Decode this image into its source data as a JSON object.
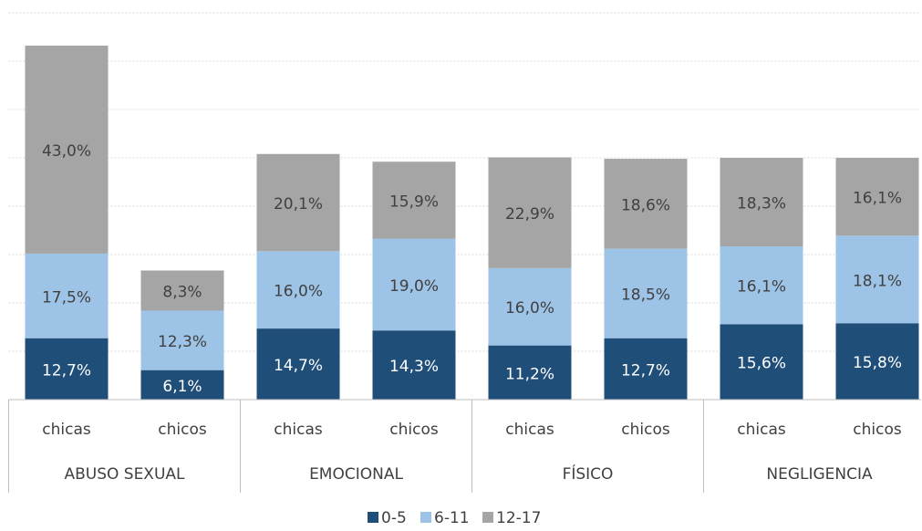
{
  "chart_data": {
    "type": "stacked_bar",
    "groups": [
      "ABUSO SEXUAL",
      "EMOCIONAL",
      "FÍSICO",
      "NEGLIGENCIA"
    ],
    "categories": [
      "chicas",
      "chicos",
      "chicas",
      "chicos",
      "chicas",
      "chicos",
      "chicas",
      "chicos"
    ],
    "series": [
      {
        "name": "0-5",
        "color": "#1f4e79",
        "values": [
          12.7,
          6.1,
          14.7,
          14.3,
          11.2,
          12.7,
          15.6,
          15.8
        ],
        "value_labels": [
          "12,7%",
          "6,1%",
          "14,7%",
          "14,3%",
          "11,2%",
          "12,7%",
          "15,6%",
          "15,8%"
        ]
      },
      {
        "name": "6-11",
        "color": "#9dc3e6",
        "values": [
          17.5,
          12.3,
          16.0,
          19.0,
          16.0,
          18.5,
          16.1,
          18.1
        ],
        "value_labels": [
          "17,5%",
          "12,3%",
          "16,0%",
          "19,0%",
          "16,0%",
          "18,5%",
          "16,1%",
          "18,1%"
        ]
      },
      {
        "name": "12-17",
        "color": "#a5a5a5",
        "values": [
          43.0,
          8.3,
          20.1,
          15.9,
          22.9,
          18.6,
          18.3,
          16.1
        ],
        "value_labels": [
          "43,0%",
          "8,3%",
          "20,1%",
          "15,9%",
          "22,9%",
          "18,6%",
          "18,3%",
          "16,1%"
        ]
      }
    ],
    "ylim": [
      0,
      80
    ],
    "yticks": [
      0,
      10,
      20,
      30,
      40,
      50,
      60,
      70,
      80
    ],
    "grid": true
  }
}
